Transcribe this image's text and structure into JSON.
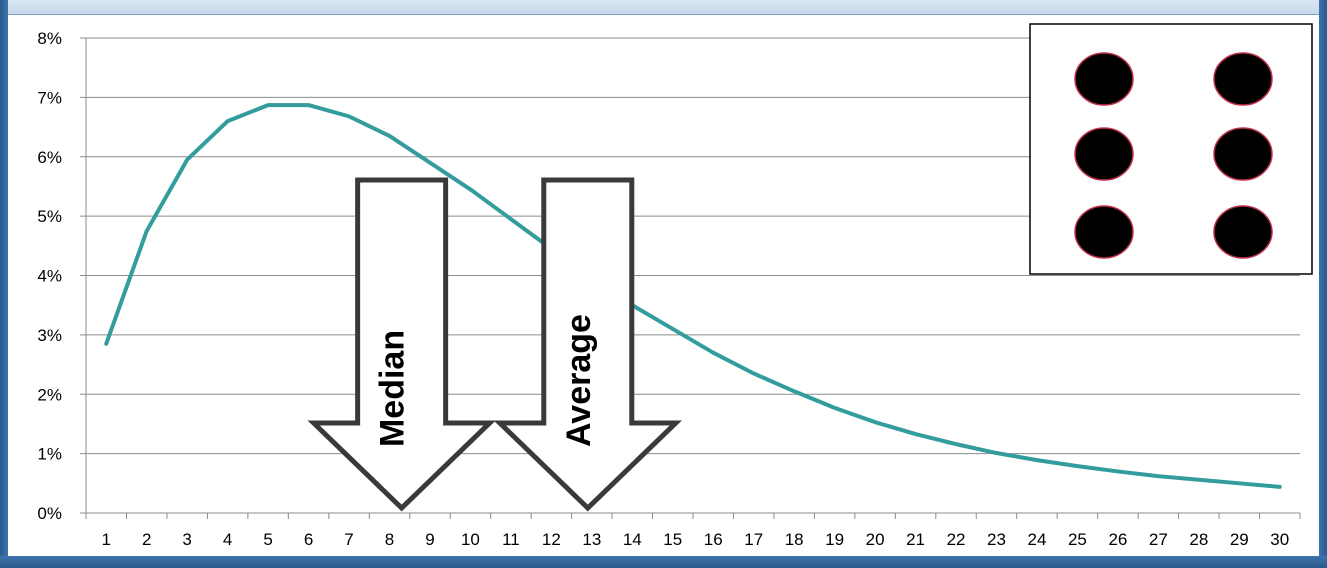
{
  "chart_data": {
    "type": "line",
    "title": "",
    "xlabel": "",
    "ylabel": "",
    "x": [
      1,
      2,
      3,
      4,
      5,
      6,
      7,
      8,
      9,
      10,
      11,
      12,
      13,
      14,
      15,
      16,
      17,
      18,
      19,
      20,
      21,
      22,
      23,
      24,
      25,
      26,
      27,
      28,
      29,
      30
    ],
    "series": [
      {
        "values": [
          2.85,
          4.75,
          5.95,
          6.6,
          6.87,
          6.87,
          6.68,
          6.35,
          5.9,
          5.45,
          4.95,
          4.45,
          3.95,
          3.5,
          3.1,
          2.7,
          2.35,
          2.05,
          1.77,
          1.53,
          1.33,
          1.16,
          1.01,
          0.89,
          0.79,
          0.7,
          0.62,
          0.56,
          0.5,
          0.44
        ],
        "color": "#339c9c"
      }
    ],
    "ylim": [
      0,
      8
    ],
    "yticks": [
      "0%",
      "1%",
      "2%",
      "3%",
      "4%",
      "5%",
      "6%",
      "7%",
      "8%"
    ],
    "xticks": [
      "1",
      "2",
      "3",
      "4",
      "5",
      "6",
      "7",
      "8",
      "9",
      "10",
      "11",
      "12",
      "13",
      "14",
      "15",
      "16",
      "17",
      "18",
      "19",
      "20",
      "21",
      "22",
      "23",
      "24",
      "25",
      "26",
      "27",
      "28",
      "29",
      "30"
    ],
    "grid": true,
    "annotations": [
      {
        "label": "Median",
        "x": 8.3
      },
      {
        "label": "Average",
        "x": 12.9
      }
    ],
    "inset": {
      "description": "die-face-six",
      "dot_count": 6,
      "dot_color": "#000000",
      "dot_outline": "#c0304a"
    }
  }
}
